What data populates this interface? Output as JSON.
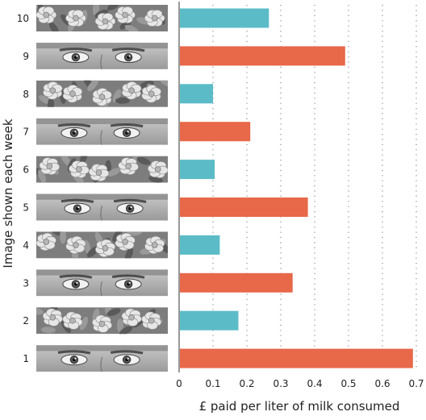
{
  "chart_data": {
    "type": "bar",
    "orientation": "horizontal",
    "xlabel": "£ paid per liter of milk consumed",
    "ylabel": "Image shown each week",
    "xlim": [
      0,
      0.7
    ],
    "x_ticks": [
      "0",
      "0.1",
      "0.2",
      "0.3",
      "0.4",
      "0.5",
      "0.6",
      "0.7"
    ],
    "grid": "vertical dotted",
    "categories": [
      "10",
      "9",
      "8",
      "7",
      "6",
      "5",
      "4",
      "3",
      "2",
      "1"
    ],
    "values": [
      0.265,
      0.49,
      0.1,
      0.21,
      0.105,
      0.38,
      0.12,
      0.335,
      0.175,
      0.69
    ],
    "image_types": [
      "flowers",
      "eyes",
      "flowers",
      "eyes",
      "flowers",
      "eyes",
      "flowers",
      "eyes",
      "flowers",
      "eyes"
    ],
    "colors": {
      "eyes": "#e8684a",
      "flowers": "#5bbcc8"
    }
  }
}
